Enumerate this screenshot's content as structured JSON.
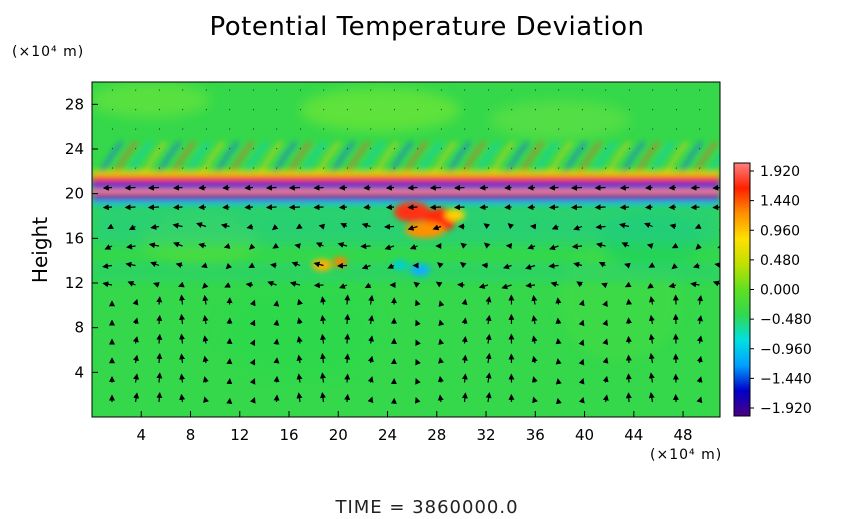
{
  "chart_data": {
    "type": "heatmap",
    "title": "Potential Temperature Deviation",
    "ylabel": "Height",
    "x_units_label": "(×10⁴ m)",
    "y_units_label": "(×10⁴ m)",
    "footer": "TIME  =  3860000.0",
    "xlim": [
      0,
      51
    ],
    "ylim": [
      0,
      30
    ],
    "xticks": [
      4,
      8,
      12,
      16,
      20,
      24,
      28,
      32,
      36,
      40,
      44,
      48
    ],
    "yticks": [
      4,
      8,
      12,
      16,
      20,
      24,
      28
    ],
    "colorbar": {
      "min": -1.92,
      "max": 1.92,
      "labels": [
        "1.920",
        "1.440",
        "0.960",
        "0.480",
        "0.000",
        "−0.480",
        "−0.960",
        "−1.440",
        "−1.920"
      ],
      "colors": [
        "#4b0082",
        "#0000c8",
        "#00a0ff",
        "#00e0e0",
        "#30d850",
        "#60e020",
        "#c0e000",
        "#ffe000",
        "#ff9000",
        "#ff2000",
        "#ff8080"
      ]
    },
    "overlays": [
      "temperature deviation field (filled)",
      "velocity vectors (arrows)"
    ]
  }
}
